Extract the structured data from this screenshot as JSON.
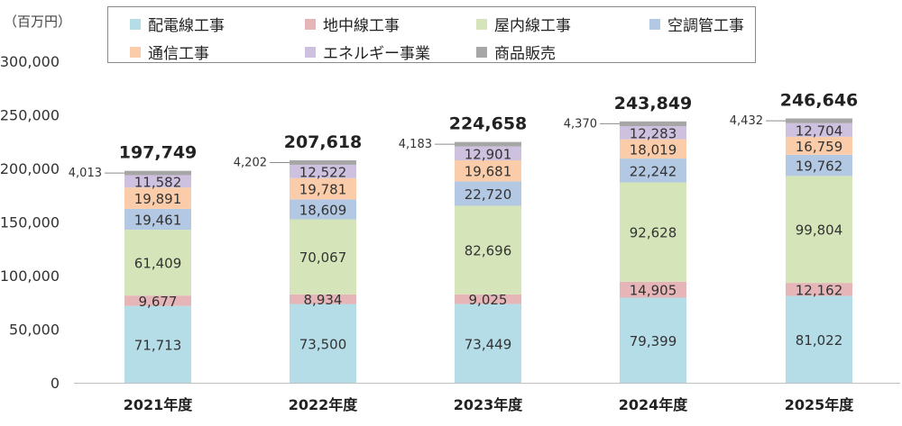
{
  "unit_label": "（百万円）",
  "colors": {
    "配電線工事": "#b4dde8",
    "地中線工事": "#e5b5b8",
    "屋内線工事": "#d6e5b9",
    "空調管工事": "#b3c8e3",
    "通信工事": "#fbcca9",
    "エネルギー事業": "#cec0df",
    "商品販売": "#a6a6a6"
  },
  "chart_data": {
    "type": "bar",
    "stacked": true,
    "categories": [
      "2021年度",
      "2022年度",
      "2023年度",
      "2024年度",
      "2025年度"
    ],
    "series": [
      {
        "name": "配電線工事",
        "values": [
          71713,
          73500,
          73449,
          79399,
          81022
        ]
      },
      {
        "name": "地中線工事",
        "values": [
          9677,
          8934,
          9025,
          14905,
          12162
        ]
      },
      {
        "name": "屋内線工事",
        "values": [
          61409,
          70067,
          82696,
          92628,
          99804
        ]
      },
      {
        "name": "空調管工事",
        "values": [
          19461,
          18609,
          22720,
          22242,
          19762
        ]
      },
      {
        "name": "通信工事",
        "values": [
          19891,
          19781,
          19681,
          18019,
          16759
        ]
      },
      {
        "name": "エネルギー事業",
        "values": [
          11582,
          12522,
          12901,
          12283,
          12704
        ]
      },
      {
        "name": "商品販売",
        "values": [
          4013,
          4202,
          4183,
          4370,
          4432
        ]
      }
    ],
    "value_labels": [
      [
        "71,713",
        "73,500",
        "73,449",
        "79,399",
        "81,022"
      ],
      [
        "9,677",
        "8,934",
        "9,025",
        "14,905",
        "12,162"
      ],
      [
        "61,409",
        "70,067",
        "82,696",
        "92,628",
        "99,804"
      ],
      [
        "19,461",
        "18,609",
        "22,720",
        "22,242",
        "19,762"
      ],
      [
        "19,891",
        "19,781",
        "19,681",
        "18,019",
        "16,759"
      ],
      [
        "11,582",
        "12,522",
        "12,901",
        "12,283",
        "12,704"
      ],
      [
        "4,013",
        "4,202",
        "4,183",
        "4,370",
        "4,432"
      ]
    ],
    "totals": [
      197749,
      207618,
      224658,
      243849,
      246646
    ],
    "total_labels": [
      "197,749",
      "207,618",
      "224,658",
      "243,849",
      "246,646"
    ],
    "yticks": [
      0,
      50000,
      100000,
      150000,
      200000,
      250000,
      300000
    ],
    "ytick_labels": [
      "0",
      "50,000",
      "100,000",
      "150,000",
      "200,000",
      "250,000",
      "300,000"
    ],
    "ylim": [
      0,
      300000
    ],
    "legend_position": "top",
    "grid": false
  }
}
